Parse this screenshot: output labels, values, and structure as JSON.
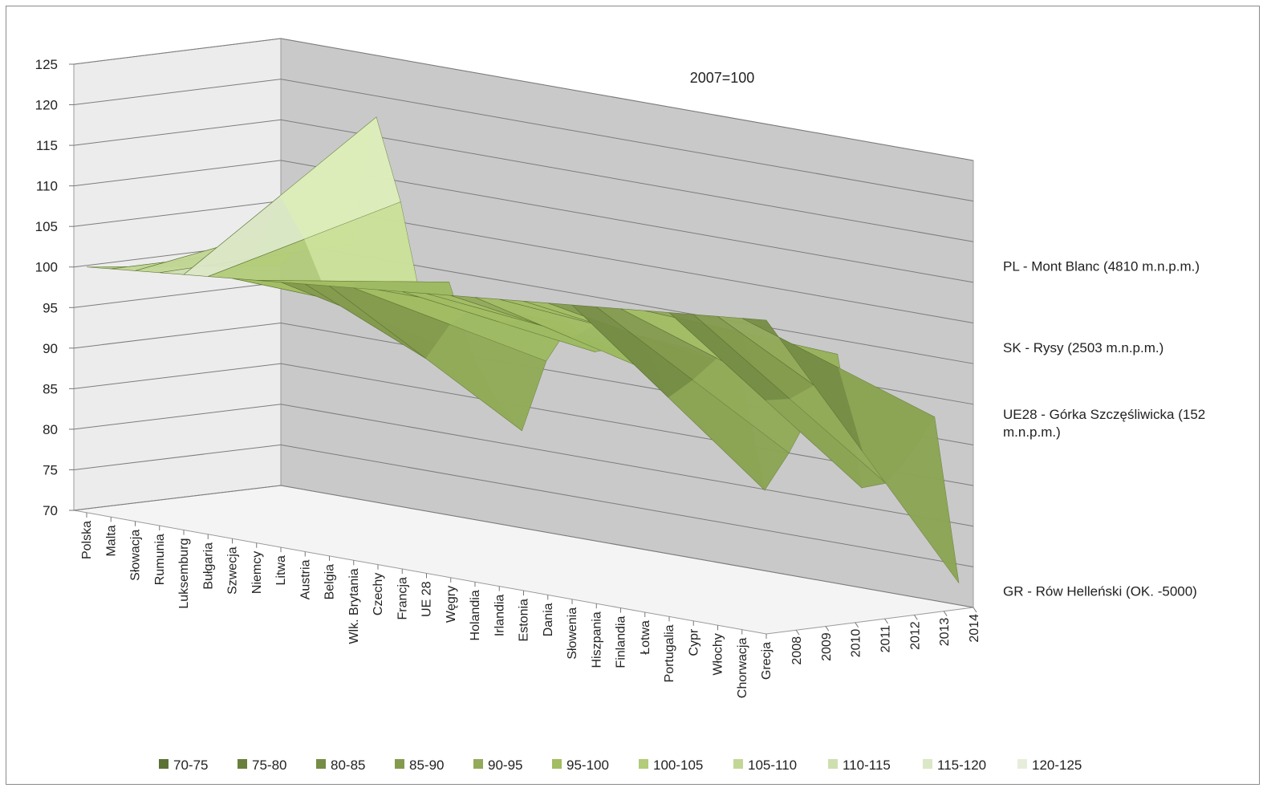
{
  "chart_data": {
    "type": "surface",
    "annotation": "2007=100",
    "ylim": [
      70,
      125
    ],
    "yticks": [
      "70",
      "75",
      "80",
      "85",
      "90",
      "95",
      "100",
      "105",
      "110",
      "115",
      "120",
      "125"
    ],
    "categories": [
      "Polska",
      "Malta",
      "Słowacja",
      "Rumunia",
      "Luksemburg",
      "Bułgaria",
      "Szwecja",
      "Niemcy",
      "Litwa",
      "Austria",
      "Belgia",
      "Wlk. Brytania",
      "Czechy",
      "Francja",
      "UE 28",
      "Węgry",
      "Holandia",
      "Irlandia",
      "Estonia",
      "Dania",
      "Słowenia",
      "Hiszpania",
      "Finlandia",
      "Łotwa",
      "Portugalia",
      "Cypr",
      "Włochy",
      "Chorwacja",
      "Grecja"
    ],
    "years": [
      "2008",
      "2009",
      "2010",
      "2011",
      "2012",
      "2013",
      "2014"
    ],
    "profile_2014": [
      100,
      103,
      107,
      104,
      120,
      110,
      96,
      101,
      92,
      87,
      84,
      93,
      98,
      95,
      96,
      95,
      93,
      97,
      96,
      95,
      81,
      86,
      92,
      99,
      83,
      84,
      88,
      93,
      73
    ],
    "reference_labels": [
      {
        "text": "PL - Mont Blanc (4810 m.n.p.m.)",
        "value": 112
      },
      {
        "text": "SK  - Rysy (2503 m.n.p.m.)",
        "value": 102
      },
      {
        "text": "UE28 - Górka Szczęśliwicka (152 m.n.p.m.)",
        "value": 93
      },
      {
        "text": "GR - Rów Helleński (OK. -5000)",
        "value": 72
      }
    ],
    "legend": [
      {
        "label": "70-75",
        "color": "#5c7234"
      },
      {
        "label": "75-80",
        "color": "#697f3c"
      },
      {
        "label": "80-85",
        "color": "#768d45"
      },
      {
        "label": "85-90",
        "color": "#849b4e"
      },
      {
        "label": "90-95",
        "color": "#92aa5a"
      },
      {
        "label": "95-100",
        "color": "#a2bd62"
      },
      {
        "label": "100-105",
        "color": "#b2cc7a"
      },
      {
        "label": "105-110",
        "color": "#c2d796"
      },
      {
        "label": "110-115",
        "color": "#cfdfb0"
      },
      {
        "label": "115-120",
        "color": "#dbe7c6"
      },
      {
        "label": "120-125",
        "color": "#e6eedb"
      }
    ],
    "legend_position": "bottom",
    "grid": true
  }
}
